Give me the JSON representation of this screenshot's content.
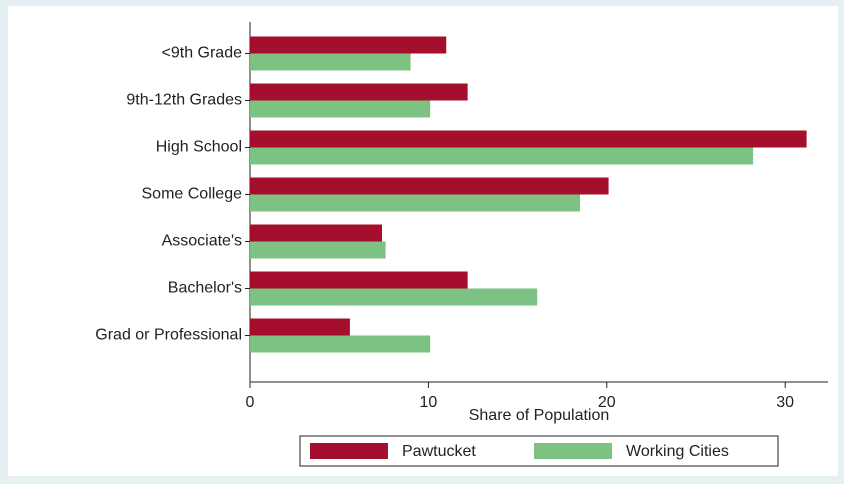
{
  "chart_data": {
    "type": "bar",
    "orientation": "horizontal",
    "categories": [
      "<9th Grade",
      "9th-12th Grades",
      "High School",
      "Some College",
      "Associate's",
      "Bachelor's",
      "Grad or Professional"
    ],
    "series": [
      {
        "name": "Pawtucket",
        "color": "#a50f2d",
        "values": [
          11.0,
          12.2,
          31.2,
          20.1,
          7.4,
          12.2,
          5.6
        ]
      },
      {
        "name": "Working Cities",
        "color": "#7dc283",
        "values": [
          9.0,
          10.1,
          28.2,
          18.5,
          7.6,
          16.1,
          10.1
        ]
      }
    ],
    "xlabel": "Share of Population",
    "xlim": [
      0,
      32.4
    ],
    "xticks": [
      0,
      10,
      20,
      30
    ],
    "grid": false,
    "legend": "bottom"
  }
}
